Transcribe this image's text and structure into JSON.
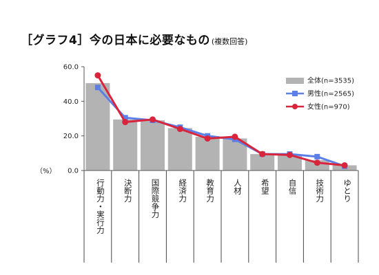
{
  "title": {
    "main": "［グラフ4］今の日本に必要なもの",
    "sub": "(複数回答)"
  },
  "unit_label": "（%）",
  "chart_data": {
    "type": "bar",
    "title": "［グラフ4］今の日本に必要なもの(複数回答)",
    "ylabel": "（%）",
    "ylim": [
      0,
      60
    ],
    "yticks": [
      "0.0",
      "20.0",
      "40.0",
      "60.0"
    ],
    "categories": [
      "行動力・実行力",
      "決断力",
      "国際競争力",
      "経済力",
      "教育力",
      "人材",
      "希望",
      "自信",
      "技術力",
      "ゆとり"
    ],
    "series": [
      {
        "name": "全体(n=3535)",
        "kind": "bar",
        "color": "#b3b3b3",
        "values": [
          50.5,
          29.5,
          29.0,
          24.5,
          19.5,
          18.5,
          9.5,
          9.0,
          6.0,
          3.0
        ]
      },
      {
        "name": "男性(n=2565)",
        "kind": "line",
        "color": "#5b7fe6",
        "values": [
          48.0,
          30.5,
          29.0,
          25.0,
          20.0,
          18.0,
          9.5,
          9.5,
          8.0,
          2.5
        ]
      },
      {
        "name": "女性(n=970)",
        "kind": "line",
        "color": "#d8253c",
        "values": [
          55.0,
          28.0,
          29.5,
          24.0,
          18.5,
          19.5,
          9.5,
          9.0,
          4.5,
          3.0
        ]
      }
    ],
    "legend_position": "top-right",
    "grid": false
  }
}
